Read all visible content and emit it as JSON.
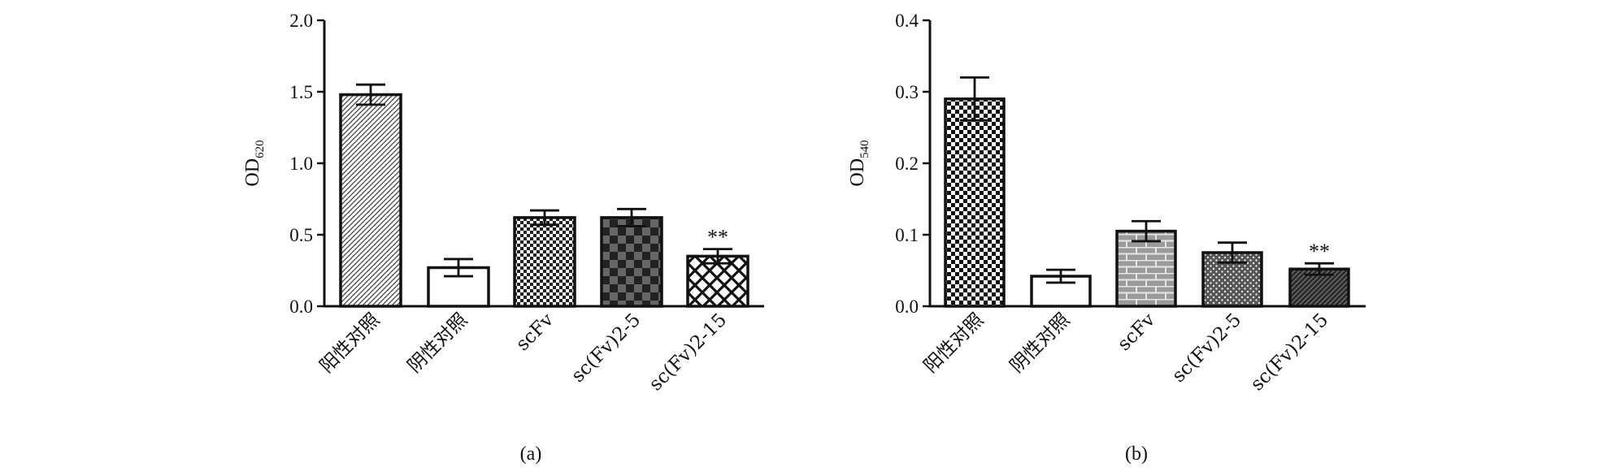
{
  "chart_data": [
    {
      "type": "bar",
      "caption": "(a)",
      "ylabel_main": "OD",
      "ylabel_sub": "620",
      "ylim": [
        0,
        2.0
      ],
      "yticks": [
        "0.0",
        "0.5",
        "1.0",
        "1.5",
        "2.0"
      ],
      "categories": [
        "阳性对照",
        "阴性对照",
        "scFv",
        "sc(Fv)2-5",
        "sc(Fv)2-15"
      ],
      "values": [
        1.48,
        0.27,
        0.62,
        0.62,
        0.35
      ],
      "error": [
        0.07,
        0.06,
        0.05,
        0.06,
        0.05
      ],
      "annotations": [
        "",
        "",
        "",
        "",
        "**"
      ],
      "patterns": [
        "diag-fine",
        "white",
        "checker-small",
        "checker-large",
        "lattice"
      ]
    },
    {
      "type": "bar",
      "caption": "(b)",
      "ylabel_main": "OD",
      "ylabel_sub": "540",
      "ylim": [
        0,
        0.4
      ],
      "yticks": [
        "0.0",
        "0.1",
        "0.2",
        "0.3",
        "0.4"
      ],
      "categories": [
        "阳性对照",
        "阴性对照",
        "scFv",
        "sc(Fv)2-5",
        "sc(Fv)2-15"
      ],
      "values": [
        0.29,
        0.042,
        0.105,
        0.075,
        0.052
      ],
      "error": [
        0.03,
        0.009,
        0.014,
        0.014,
        0.008
      ],
      "annotations": [
        "",
        "",
        "",
        "",
        "**"
      ],
      "patterns": [
        "checker-medium",
        "white",
        "brick",
        "dots",
        "stripes"
      ]
    }
  ]
}
